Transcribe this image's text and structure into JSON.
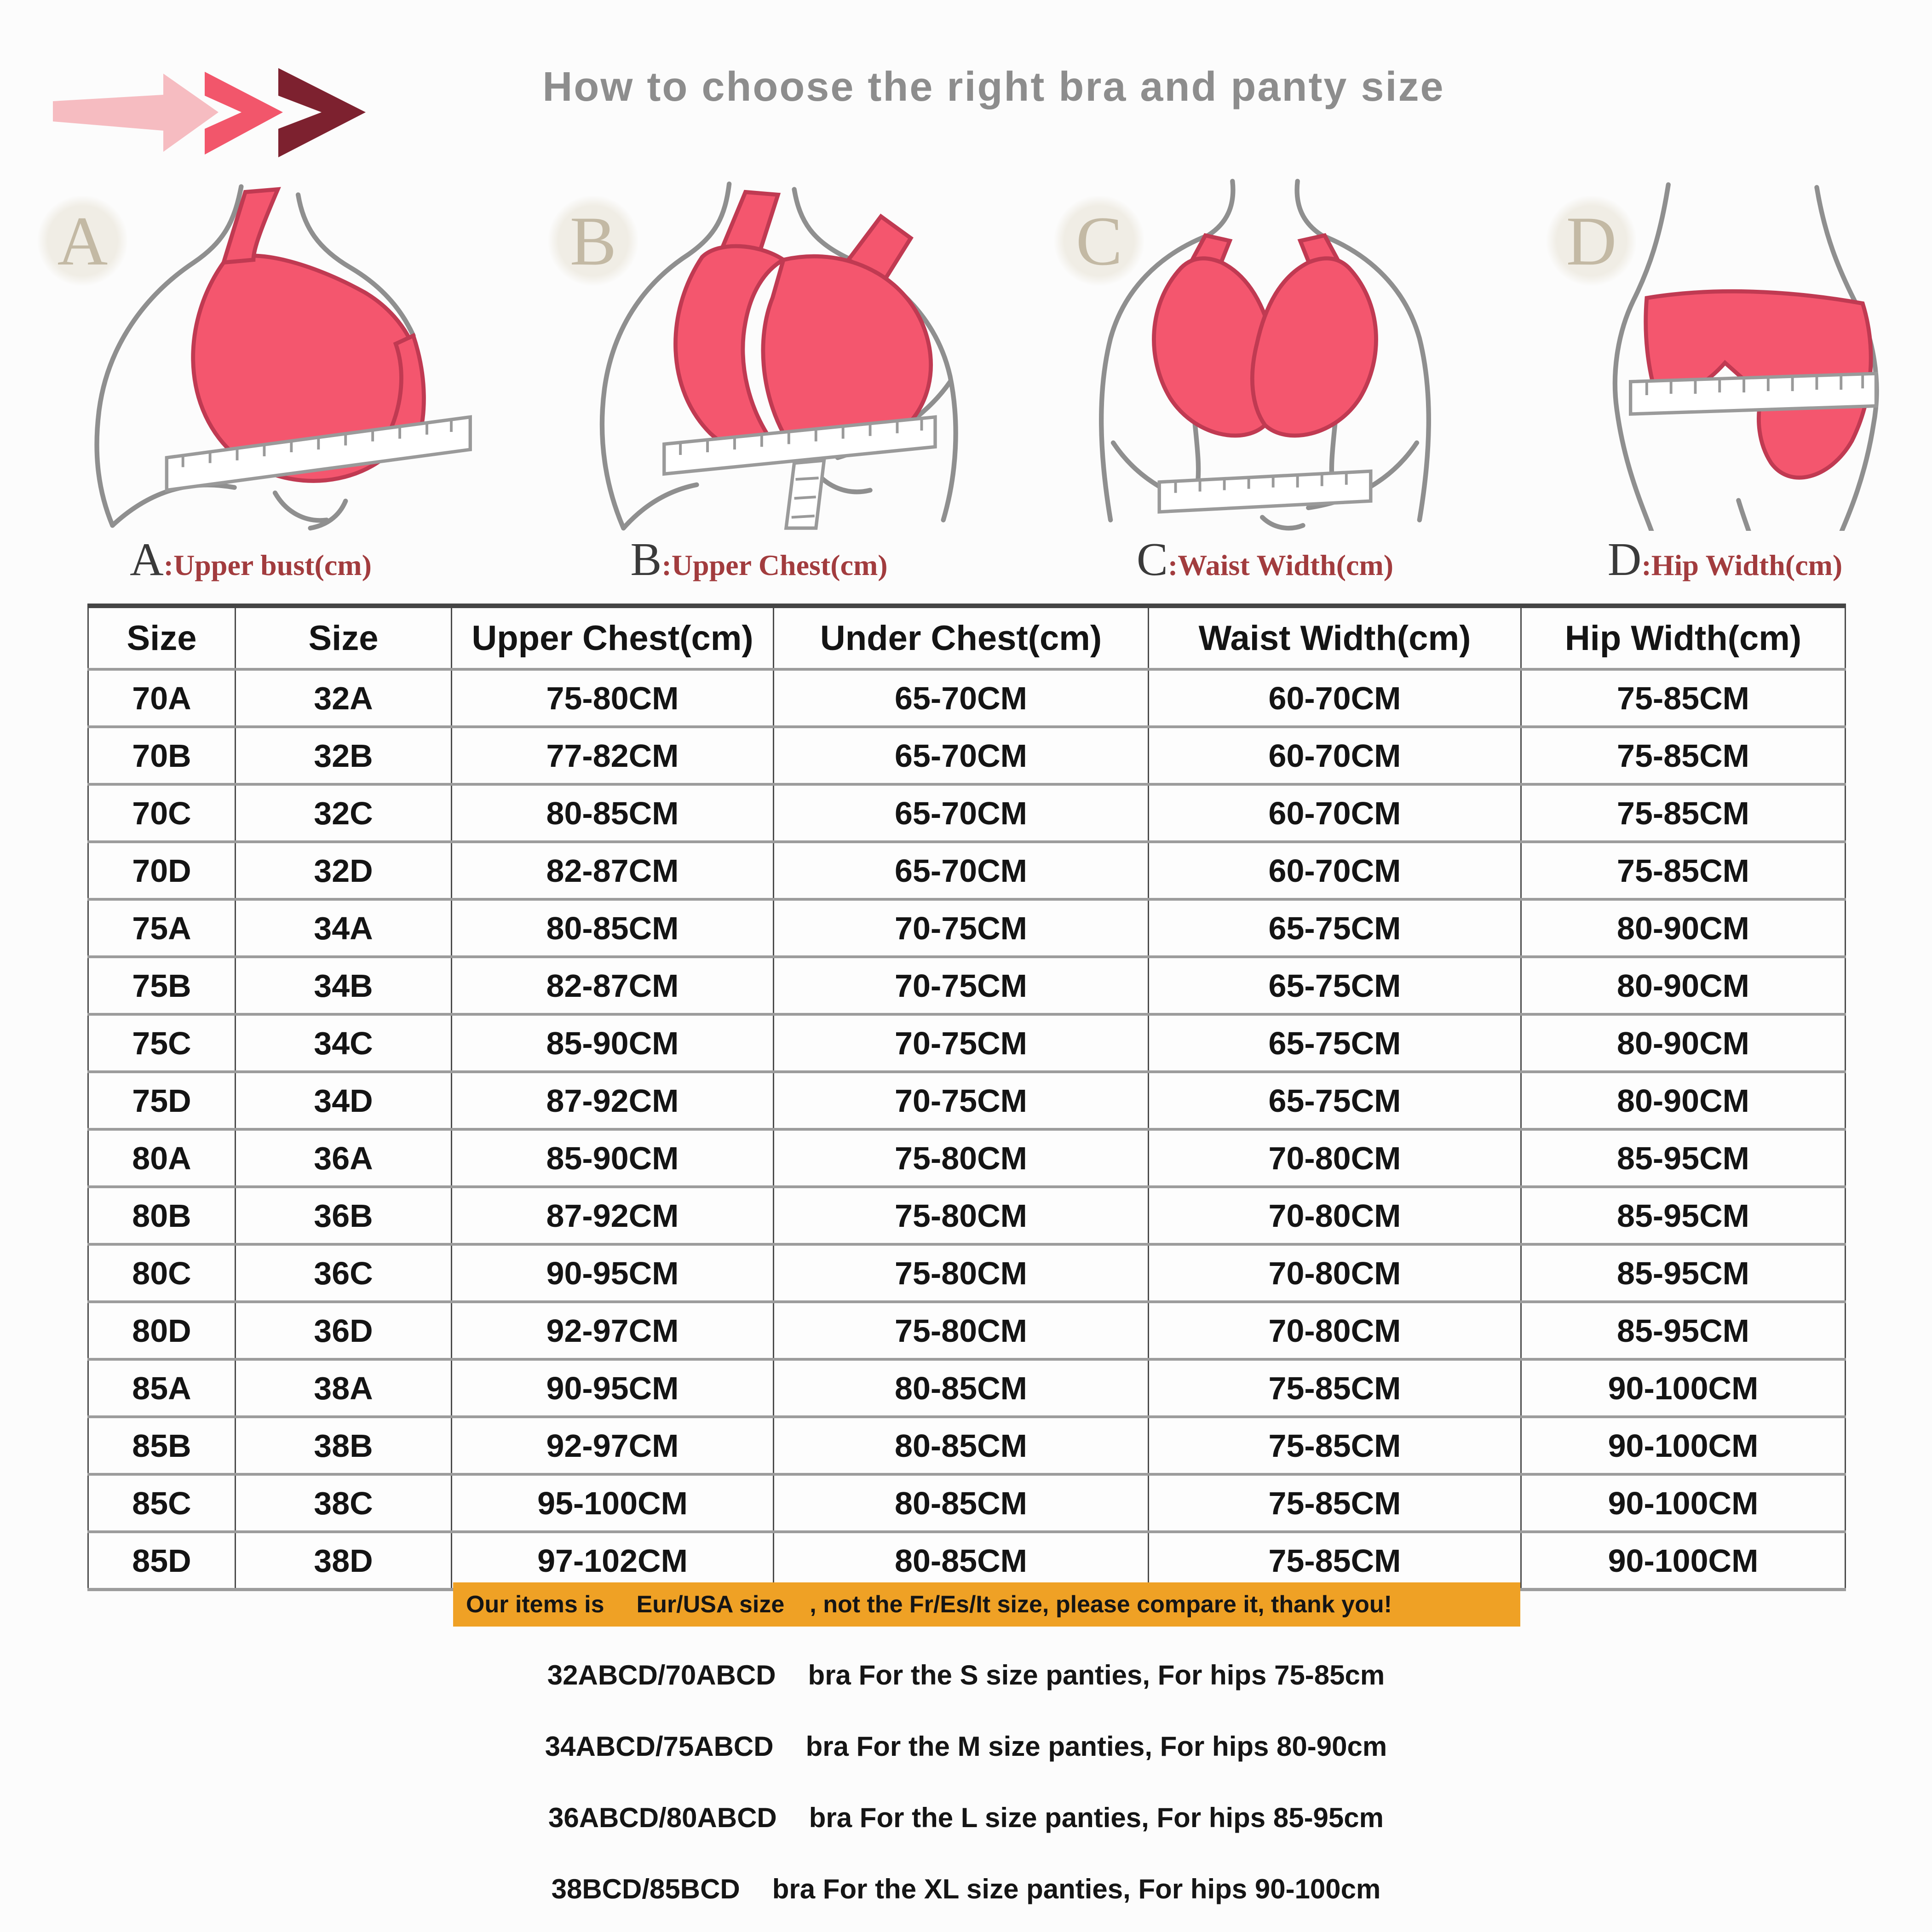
{
  "colors": {
    "bra_pink": "#f4566e",
    "pale_arrow_pink": "#f6bcc1",
    "mid_arrow_pink": "#f2566b",
    "dark_arrow_red": "#7d212f",
    "label_red": "#a23c3e",
    "title_gray": "#8d8d8d",
    "banner_orange": "#efa125"
  },
  "header": {
    "title": "How to choose the right bra and panty size"
  },
  "figures": [
    {
      "letter": "A",
      "separator": ":",
      "label": "Upper bust(cm)"
    },
    {
      "letter": "B",
      "separator": ":",
      "label": "Upper Chest(cm)"
    },
    {
      "letter": "C",
      "separator": ":",
      "label": "Waist Width(cm)"
    },
    {
      "letter": "D",
      "separator": ":",
      "label": "Hip Width(cm)"
    }
  ],
  "table": {
    "headers": [
      "Size",
      "Size",
      "Upper Chest(cm)",
      "Under Chest(cm)",
      "Waist Width(cm)",
      "Hip Width(cm)"
    ],
    "rows": [
      [
        "70A",
        "32A",
        "75-80CM",
        "65-70CM",
        "60-70CM",
        "75-85CM"
      ],
      [
        "70B",
        "32B",
        "77-82CM",
        "65-70CM",
        "60-70CM",
        "75-85CM"
      ],
      [
        "70C",
        "32C",
        "80-85CM",
        "65-70CM",
        "60-70CM",
        "75-85CM"
      ],
      [
        "70D",
        "32D",
        "82-87CM",
        "65-70CM",
        "60-70CM",
        "75-85CM"
      ],
      [
        "75A",
        "34A",
        "80-85CM",
        "70-75CM",
        "65-75CM",
        "80-90CM"
      ],
      [
        "75B",
        "34B",
        "82-87CM",
        "70-75CM",
        "65-75CM",
        "80-90CM"
      ],
      [
        "75C",
        "34C",
        "85-90CM",
        "70-75CM",
        "65-75CM",
        "80-90CM"
      ],
      [
        "75D",
        "34D",
        "87-92CM",
        "70-75CM",
        "65-75CM",
        "80-90CM"
      ],
      [
        "80A",
        "36A",
        "85-90CM",
        "75-80CM",
        "70-80CM",
        "85-95CM"
      ],
      [
        "80B",
        "36B",
        "87-92CM",
        "75-80CM",
        "70-80CM",
        "85-95CM"
      ],
      [
        "80C",
        "36C",
        "90-95CM",
        "75-80CM",
        "70-80CM",
        "85-95CM"
      ],
      [
        "80D",
        "36D",
        "92-97CM",
        "75-80CM",
        "70-80CM",
        "85-95CM"
      ],
      [
        "85A",
        "38A",
        "90-95CM",
        "80-85CM",
        "75-85CM",
        "90-100CM"
      ],
      [
        "85B",
        "38B",
        "92-97CM",
        "80-85CM",
        "75-85CM",
        "90-100CM"
      ],
      [
        "85C",
        "38C",
        "95-100CM",
        "80-85CM",
        "75-85CM",
        "90-100CM"
      ],
      [
        "85D",
        "38D",
        "97-102CM",
        "80-85CM",
        "75-85CM",
        "90-100CM"
      ]
    ]
  },
  "banner": {
    "part1": "Our items is",
    "highlight": "Eur/USA size",
    "part2": ", not the Fr/Es/It size, please compare it, thank you!"
  },
  "notes": [
    {
      "code": "32ABCD/70ABCD",
      "desc": "bra For the S size panties, For hips 75-85cm"
    },
    {
      "code": "34ABCD/75ABCD",
      "desc": "bra For the M size panties, For hips 80-90cm"
    },
    {
      "code": "36ABCD/80ABCD",
      "desc": "bra For the L size panties, For hips 85-95cm"
    },
    {
      "code": "38BCD/85BCD",
      "desc": "bra For the XL size panties, For hips 90-100cm"
    }
  ]
}
